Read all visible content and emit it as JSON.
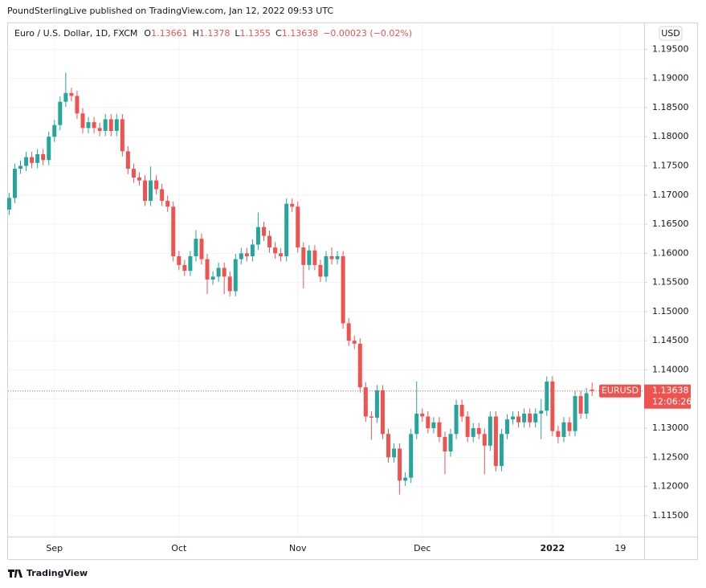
{
  "published": "PoundSterlingLive published on TradingView.com, Jan 12, 2022 09:53 UTC",
  "footer": "TradingView",
  "chart_data": {
    "type": "candlestick",
    "title": "Euro / U.S. Dollar, 1D, FXCM",
    "ohlc_letters": [
      "O",
      "H",
      "L",
      "C"
    ],
    "change": "−0.00023 (−0.02%)",
    "symbol": "EURUSD",
    "countdown": "12:06:26",
    "currency": "USD",
    "up_color": "#26a69a",
    "down_color": "#ef5350",
    "grid": true,
    "xlim": [
      -0.2,
      112.2
    ],
    "xticks": [
      {
        "value": 8,
        "label": "Sep"
      },
      {
        "value": 30,
        "label": "Oct"
      },
      {
        "value": 51,
        "label": "Nov"
      },
      {
        "value": 73,
        "label": "Dec"
      },
      {
        "value": 96,
        "label": "2022"
      },
      {
        "value": 108,
        "label": "19"
      }
    ],
    "ylim": [
      1.1114,
      1.1996
    ],
    "yticks": [
      {
        "value": 1.115,
        "label": "1.11500"
      },
      {
        "value": 1.12,
        "label": "1.12000"
      },
      {
        "value": 1.125,
        "label": "1.12500"
      },
      {
        "value": 1.13,
        "label": "1.13000"
      },
      {
        "value": 1.135,
        "label": "1.13500"
      },
      {
        "value": 1.14,
        "label": "1.14000"
      },
      {
        "value": 1.145,
        "label": "1.14500"
      },
      {
        "value": 1.15,
        "label": "1.15000"
      },
      {
        "value": 1.155,
        "label": "1.15500"
      },
      {
        "value": 1.16,
        "label": "1.16000"
      },
      {
        "value": 1.165,
        "label": "1.16500"
      },
      {
        "value": 1.17,
        "label": "1.17000"
      },
      {
        "value": 1.175,
        "label": "1.17500"
      },
      {
        "value": 1.18,
        "label": "1.18000"
      },
      {
        "value": 1.185,
        "label": "1.18500"
      },
      {
        "value": 1.19,
        "label": "1.19000"
      },
      {
        "value": 1.195,
        "label": "1.19500"
      }
    ],
    "open": [
      1.1675,
      1.1695,
      1.1745,
      1.175,
      1.1765,
      1.1755,
      1.177,
      1.176,
      1.18,
      1.182,
      1.186,
      1.1875,
      1.187,
      1.184,
      1.1815,
      1.1825,
      1.1815,
      1.181,
      1.183,
      1.181,
      1.183,
      1.1775,
      1.1745,
      1.173,
      1.1725,
      1.169,
      1.1725,
      1.171,
      1.169,
      1.168,
      1.1595,
      1.158,
      1.157,
      1.1595,
      1.1625,
      1.159,
      1.1555,
      1.156,
      1.1575,
      1.156,
      1.1535,
      1.159,
      1.16,
      1.1595,
      1.1615,
      1.1645,
      1.163,
      1.161,
      1.16,
      1.1595,
      1.1685,
      1.168,
      1.161,
      1.158,
      1.1605,
      1.158,
      1.156,
      1.1595,
      1.159,
      1.1595,
      1.148,
      1.145,
      1.1445,
      1.137,
      1.132,
      1.1318,
      1.1365,
      1.129,
      1.125,
      1.1265,
      1.121,
      1.1215,
      1.129,
      1.1325,
      1.132,
      1.13,
      1.131,
      1.1285,
      1.126,
      1.129,
      1.134,
      1.132,
      1.1285,
      1.13,
      1.129,
      1.127,
      1.132,
      1.1235,
      1.129,
      1.1315,
      1.132,
      1.131,
      1.1325,
      1.131,
      1.1325,
      1.133,
      1.138,
      1.1295,
      1.1285,
      1.131,
      1.1295,
      1.1355,
      1.1325,
      1.13661
    ],
    "high": [
      1.1704,
      1.1754,
      1.1759,
      1.1774,
      1.1774,
      1.1779,
      1.1779,
      1.1809,
      1.1829,
      1.1869,
      1.191,
      1.1884,
      1.1879,
      1.1849,
      1.1834,
      1.1834,
      1.1824,
      1.1839,
      1.1839,
      1.1839,
      1.1839,
      1.1784,
      1.1754,
      1.1739,
      1.1734,
      1.1749,
      1.1734,
      1.1719,
      1.1699,
      1.1689,
      1.1604,
      1.1589,
      1.1604,
      1.164,
      1.1634,
      1.1599,
      1.1569,
      1.1584,
      1.1584,
      1.1569,
      1.1599,
      1.1609,
      1.1609,
      1.1624,
      1.167,
      1.1654,
      1.1639,
      1.1619,
      1.1609,
      1.1694,
      1.1694,
      1.1689,
      1.1619,
      1.1614,
      1.1614,
      1.1589,
      1.1604,
      1.161,
      1.1604,
      1.1604,
      1.1489,
      1.1459,
      1.1454,
      1.1379,
      1.1329,
      1.1374,
      1.1374,
      1.1299,
      1.1274,
      1.1274,
      1.1224,
      1.1299,
      1.138,
      1.1334,
      1.1329,
      1.1319,
      1.1319,
      1.1294,
      1.1299,
      1.1349,
      1.1349,
      1.1329,
      1.1309,
      1.1309,
      1.1299,
      1.1329,
      1.1329,
      1.1299,
      1.1324,
      1.1329,
      1.1329,
      1.1334,
      1.1334,
      1.1334,
      1.135,
      1.1389,
      1.1389,
      1.1304,
      1.1319,
      1.1319,
      1.1364,
      1.1364,
      1.1369,
      1.1378
    ],
    "low": [
      1.1666,
      1.1686,
      1.1736,
      1.1741,
      1.1746,
      1.1746,
      1.1751,
      1.1751,
      1.1791,
      1.1811,
      1.1851,
      1.1861,
      1.1831,
      1.1806,
      1.1806,
      1.1806,
      1.1801,
      1.1801,
      1.1801,
      1.1801,
      1.1766,
      1.1736,
      1.1721,
      1.1716,
      1.1681,
      1.1681,
      1.1701,
      1.1681,
      1.1671,
      1.1586,
      1.1571,
      1.1561,
      1.1561,
      1.1586,
      1.1581,
      1.153,
      1.1546,
      1.1551,
      1.153,
      1.1526,
      1.1526,
      1.1581,
      1.1586,
      1.1586,
      1.1606,
      1.1621,
      1.1601,
      1.1591,
      1.1586,
      1.1586,
      1.1671,
      1.1601,
      1.154,
      1.1571,
      1.1571,
      1.1551,
      1.1551,
      1.1581,
      1.1581,
      1.1471,
      1.1441,
      1.1436,
      1.1361,
      1.1311,
      1.128,
      1.1309,
      1.1281,
      1.1241,
      1.1241,
      1.1186,
      1.1201,
      1.1206,
      1.1281,
      1.1311,
      1.1291,
      1.1291,
      1.1276,
      1.1221,
      1.1251,
      1.1281,
      1.1311,
      1.1276,
      1.1276,
      1.1281,
      1.1221,
      1.1261,
      1.1226,
      1.1226,
      1.1281,
      1.1306,
      1.1301,
      1.1301,
      1.1301,
      1.1301,
      1.1281,
      1.1321,
      1.1286,
      1.1274,
      1.1276,
      1.1286,
      1.1286,
      1.1316,
      1.1316,
      1.1355
    ],
    "close": [
      1.1695,
      1.1745,
      1.175,
      1.1765,
      1.1755,
      1.177,
      1.176,
      1.18,
      1.182,
      1.186,
      1.1875,
      1.187,
      1.184,
      1.1815,
      1.1825,
      1.1815,
      1.181,
      1.183,
      1.181,
      1.183,
      1.1775,
      1.1745,
      1.173,
      1.1725,
      1.169,
      1.1725,
      1.171,
      1.169,
      1.168,
      1.1595,
      1.158,
      1.157,
      1.1595,
      1.1625,
      1.159,
      1.1555,
      1.156,
      1.1575,
      1.156,
      1.1535,
      1.159,
      1.16,
      1.1595,
      1.1615,
      1.1645,
      1.163,
      1.161,
      1.16,
      1.1595,
      1.1685,
      1.168,
      1.161,
      1.158,
      1.1605,
      1.158,
      1.156,
      1.1595,
      1.159,
      1.1595,
      1.148,
      1.145,
      1.1445,
      1.137,
      1.132,
      1.1318,
      1.1365,
      1.129,
      1.125,
      1.1265,
      1.121,
      1.1215,
      1.129,
      1.1325,
      1.132,
      1.13,
      1.131,
      1.1285,
      1.126,
      1.129,
      1.134,
      1.132,
      1.1285,
      1.13,
      1.129,
      1.127,
      1.132,
      1.1235,
      1.129,
      1.1315,
      1.132,
      1.131,
      1.1325,
      1.131,
      1.1325,
      1.133,
      1.138,
      1.1295,
      1.1285,
      1.131,
      1.1295,
      1.1355,
      1.1325,
      1.136,
      1.13638
    ]
  }
}
